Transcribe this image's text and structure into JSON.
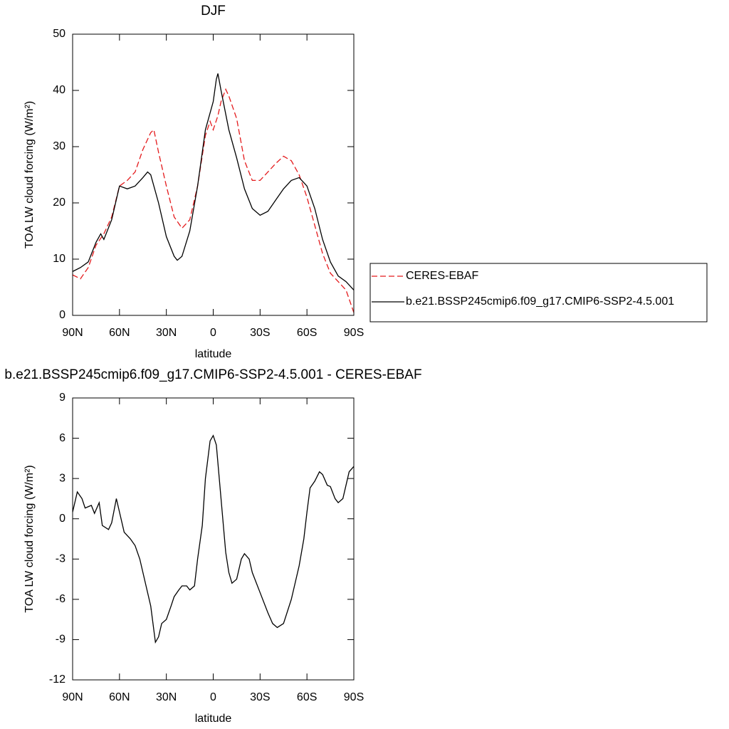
{
  "chart_data": [
    {
      "type": "line",
      "title": "DJF",
      "xlabel": "latitude",
      "ylabel": "TOA LW cloud forcing (W/m²)",
      "xlim": [
        90,
        -90
      ],
      "xticks": [
        {
          "value": 90,
          "label": "90N"
        },
        {
          "value": 60,
          "label": "60N"
        },
        {
          "value": 30,
          "label": "30N"
        },
        0,
        {
          "value": -30,
          "label": "30S"
        },
        {
          "value": -60,
          "label": "60S"
        },
        {
          "value": -90,
          "label": "90S"
        }
      ],
      "ylim": [
        0,
        50
      ],
      "yticks": [
        0,
        10,
        20,
        30,
        40,
        50
      ],
      "legend": "right",
      "series": [
        {
          "name": "CERES-EBAF",
          "color": "#e41a1c",
          "linestyle": "dashed",
          "x": [
            90,
            85,
            80,
            75,
            70,
            65,
            60,
            55,
            50,
            45,
            40,
            38,
            35,
            30,
            25,
            20,
            15,
            10,
            5,
            2,
            0,
            -3,
            -5,
            -8,
            -10,
            -15,
            -20,
            -25,
            -30,
            -35,
            -40,
            -45,
            -50,
            -55,
            -60,
            -65,
            -70,
            -75,
            -80,
            -85,
            -90
          ],
          "values": [
            7.2,
            6.5,
            8.5,
            12.5,
            14.5,
            17.5,
            23,
            24,
            25.5,
            29.5,
            32.5,
            33,
            29,
            23,
            17.5,
            15.5,
            17,
            23,
            32,
            34.5,
            33,
            35.5,
            38,
            40.2,
            39,
            35,
            27.5,
            24,
            24,
            25.5,
            27,
            28.3,
            27.5,
            25,
            21,
            16,
            11,
            7.5,
            6,
            4.5,
            0.5
          ]
        },
        {
          "name": "b.e21.BSSP245cmip6.f09_g17.CMIP6-SSP2-4.5.001",
          "color": "#000000",
          "linestyle": "solid",
          "x": [
            90,
            85,
            80,
            75,
            72,
            70,
            65,
            60,
            55,
            50,
            45,
            42,
            40,
            35,
            30,
            25,
            23,
            20,
            15,
            10,
            5,
            0,
            -2,
            -3,
            -5,
            -10,
            -15,
            -20,
            -25,
            -30,
            -35,
            -40,
            -45,
            -50,
            -55,
            -60,
            -65,
            -70,
            -75,
            -80,
            -85,
            -90
          ],
          "values": [
            7.8,
            8.5,
            9.5,
            13,
            14.5,
            13.5,
            17,
            23,
            22.5,
            23,
            24.5,
            25.5,
            25,
            20,
            14,
            10.5,
            9.8,
            10.5,
            15,
            23,
            33,
            38,
            42,
            43,
            40,
            33,
            28,
            22.5,
            19,
            17.8,
            18.5,
            20.5,
            22.5,
            24,
            24.5,
            23,
            19,
            13.5,
            9.5,
            7,
            6,
            4.5
          ]
        }
      ]
    },
    {
      "type": "line",
      "title": "b.e21.BSSP245cmip6.f09_g17.CMIP6-SSP2-4.5.001 - CERES-EBAF",
      "xlabel": "latitude",
      "ylabel": "TOA LW cloud forcing (W/m²)",
      "xlim": [
        90,
        -90
      ],
      "xticks": [
        {
          "value": 90,
          "label": "90N"
        },
        {
          "value": 60,
          "label": "60N"
        },
        {
          "value": 30,
          "label": "30N"
        },
        0,
        {
          "value": -30,
          "label": "30S"
        },
        {
          "value": -60,
          "label": "60S"
        },
        {
          "value": -90,
          "label": "90S"
        }
      ],
      "ylim": [
        -12,
        9
      ],
      "yticks": [
        -12,
        -9,
        -6,
        -3,
        0,
        3,
        6,
        9
      ],
      "series": [
        {
          "color": "#000000",
          "linestyle": "solid",
          "x": [
            90,
            87,
            84,
            82,
            78,
            76,
            73,
            71,
            67,
            65,
            62,
            60,
            57,
            53,
            50,
            47,
            43,
            40,
            37,
            35,
            33,
            30,
            27,
            25,
            22,
            20,
            17,
            15,
            12,
            10,
            7,
            5,
            2,
            0,
            -2,
            -5,
            -8,
            -10,
            -12,
            -15,
            -18,
            -20,
            -23,
            -25,
            -30,
            -35,
            -38,
            -41,
            -45,
            -50,
            -55,
            -58,
            -60,
            -62,
            -65,
            -68,
            -70,
            -73,
            -75,
            -78,
            -80,
            -83,
            -85,
            -87,
            -90
          ],
          "values": [
            0.5,
            2.0,
            1.5,
            0.8,
            1.0,
            0.4,
            1.2,
            -0.5,
            -0.8,
            -0.3,
            1.5,
            0.5,
            -1.0,
            -1.5,
            -2.0,
            -3.0,
            -5.0,
            -6.5,
            -9.2,
            -8.8,
            -7.8,
            -7.5,
            -6.5,
            -5.8,
            -5.3,
            -5.0,
            -5.0,
            -5.3,
            -5.0,
            -3.0,
            -0.5,
            3.0,
            5.8,
            6.2,
            5.5,
            1.5,
            -2.5,
            -4.0,
            -4.8,
            -4.5,
            -3.0,
            -2.6,
            -3.0,
            -4.0,
            -5.5,
            -7.0,
            -7.8,
            -8.1,
            -7.8,
            -6.0,
            -3.5,
            -1.5,
            0.5,
            2.3,
            2.8,
            3.5,
            3.3,
            2.5,
            2.4,
            1.5,
            1.2,
            1.5,
            2.5,
            3.5,
            3.9
          ]
        }
      ]
    }
  ]
}
